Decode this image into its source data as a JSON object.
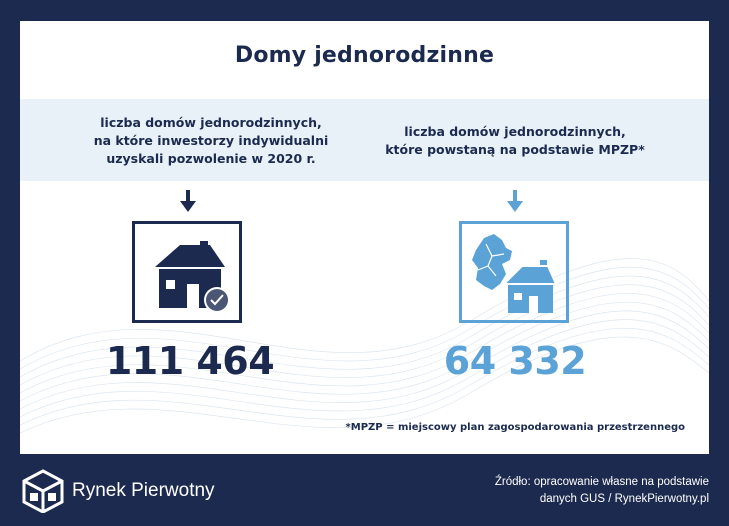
{
  "title": "Domy jednorodzinne",
  "left": {
    "description_lines": [
      "liczba domów jednorodzinnych,",
      "na które inwestorzy indywidualni",
      "uzyskali pozwolenie w 2020 r."
    ],
    "value": "111 464",
    "icon": "house-check-icon",
    "color": "#1b2a4e"
  },
  "right": {
    "description_lines": [
      "liczba domów jednorodzinnych,",
      "które powstaną na podstawie MPZP*"
    ],
    "value": "64 332",
    "icon": "house-map-icon",
    "color": "#5ba2d6"
  },
  "footnote": "*MPZP = miejscowy plan zagospodarowania przestrzennego",
  "brand": "Rynek Pierwotny",
  "source_lines": [
    "Źródło: opracowanie własne na podstawie",
    "danych GUS / RynekPierwotny.pl"
  ],
  "colors": {
    "dark_navy": "#1b2a4e",
    "light_blue": "#5ba2d6",
    "band": "#e8f1f8"
  }
}
